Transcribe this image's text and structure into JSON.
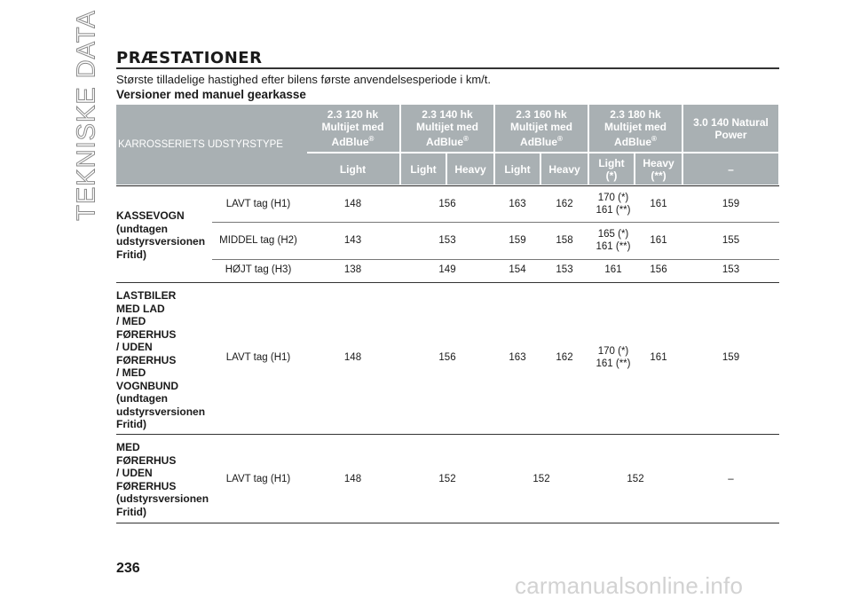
{
  "side_title": "TEKNISKE DATA",
  "heading": "PRÆSTATIONER",
  "intro": "Største tilladelige hastighed efter bilens første anvendelsesperiode i km/t.",
  "subheading": "Versioner med manuel gearkasse",
  "table": {
    "corner_label": "KARROSSERIETS UDSTYRSTYPE",
    "engines": [
      {
        "l1": "2.3 120 hk",
        "l2": "Multijet med",
        "l3": "AdBlue",
        "reg": "®"
      },
      {
        "l1": "2.3 140 hk",
        "l2": "Multijet med",
        "l3": "AdBlue",
        "reg": "®"
      },
      {
        "l1": "2.3 160 hk",
        "l2": "Multijet med",
        "l3": "AdBlue",
        "reg": "®"
      },
      {
        "l1": "2.3 180 hk",
        "l2": "Multijet med",
        "l3": "AdBlue",
        "reg": "®"
      },
      {
        "l1": "3.0 140 Natural",
        "l2": "Power",
        "l3": "",
        "reg": ""
      }
    ],
    "variants": [
      "Light",
      "Light",
      "Heavy",
      "Light",
      "Heavy",
      "Light\n(*)",
      "Heavy\n(**)",
      "–"
    ],
    "groups": [
      {
        "label": "KASSEVOGN\n(undtagen\nudstyrsversionen\nFritid)"
      },
      {
        "label": "LASTBILER\nMED LAD\n/ MED\nFØRERHUS\n/ UDEN\nFØRERHUS\n/ MED\nVOGNBUND\n(undtagen\nudstyrsversionen\nFritid)"
      },
      {
        "label": "MED\nFØRERHUS\n/ UDEN\nFØRERHUS\n(udstyrsversionen\nFritid)"
      }
    ],
    "rows": [
      {
        "type": "LAVT tag (H1)",
        "v": [
          "148",
          "156",
          "163",
          "162",
          "170 (*)\n161 (**)",
          "161",
          "159"
        ]
      },
      {
        "type": "MIDDEL tag (H2)",
        "v": [
          "143",
          "153",
          "159",
          "158",
          "165 (*)\n161 (**)",
          "161",
          "155"
        ]
      },
      {
        "type": "HØJT tag (H3)",
        "v": [
          "138",
          "149",
          "154",
          "153",
          "161",
          "156",
          "153"
        ]
      },
      {
        "type": "LAVT tag (H1)",
        "v": [
          "148",
          "156",
          "163",
          "162",
          "170 (*)\n161 (**)",
          "161",
          "159"
        ]
      },
      {
        "type": "LAVT tag (H1)",
        "v": [
          "148",
          "152",
          "152",
          "152",
          "–"
        ]
      }
    ]
  },
  "page_number": "236",
  "watermark": "carmanualsonline.info"
}
